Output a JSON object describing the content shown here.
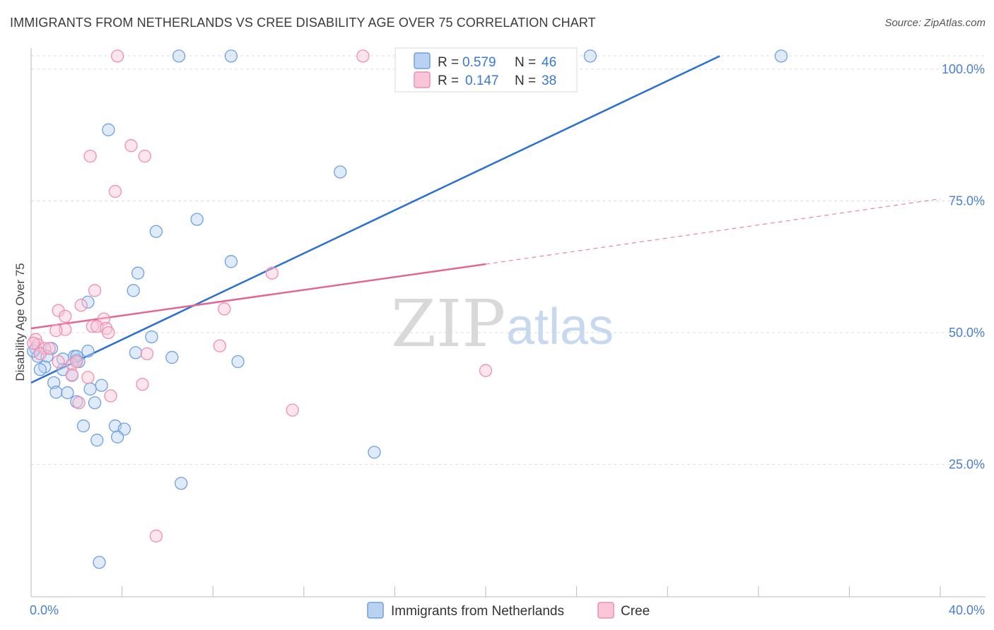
{
  "header": {
    "title": "IMMIGRANTS FROM NETHERLANDS VS CREE DISABILITY AGE OVER 75 CORRELATION CHART",
    "source": "Source: ZipAtlas.com"
  },
  "watermark": {
    "zip": "ZIP",
    "atlas": "atlas"
  },
  "colors": {
    "blue": "#6fa0e0",
    "blue_fill": "#b9d2f2",
    "blue_line": "#2b6fcf",
    "pink": "#ee8fb0",
    "pink_fill": "#f8c6d6",
    "pink_line": "#e06891",
    "grid": "#dddddd",
    "tick_text": "#4a7fcf"
  },
  "legend": {
    "rows": [
      {
        "r_label": "R =",
        "r_value": "0.579",
        "n_label": "N =",
        "n_value": "46"
      },
      {
        "r_label": "R =",
        "r_value": "0.147",
        "n_label": "N =",
        "n_value": "38"
      }
    ]
  },
  "bottom_legend": {
    "items": [
      {
        "label": "Immigrants from Netherlands"
      },
      {
        "label": "Cree"
      }
    ]
  },
  "chart_data": {
    "type": "scatter",
    "title": "IMMIGRANTS FROM NETHERLANDS VS CREE DISABILITY AGE OVER 75 CORRELATION CHART",
    "xlabel": "",
    "ylabel": "Disability Age Over 75",
    "xlim": [
      0,
      40
    ],
    "ylim": [
      0,
      100
    ],
    "x_tick_labels": [
      {
        "value": 0,
        "label": "0.0%"
      },
      {
        "value": 40,
        "label": "40.0%"
      }
    ],
    "y_tick_labels": [
      {
        "value": 100,
        "label": "100.0%"
      },
      {
        "value": 75,
        "label": "75.0%"
      },
      {
        "value": 50,
        "label": "50.0%"
      },
      {
        "value": 25,
        "label": "25.0%"
      }
    ],
    "grid": true,
    "series": [
      {
        "name": "Immigrants from Netherlands",
        "r": 0.579,
        "n": 46,
        "trend": {
          "x": [
            0,
            30.3
          ],
          "y": [
            40.5,
            102.5
          ]
        },
        "points": [
          [
            6.5,
            102.5
          ],
          [
            8.8,
            102.5
          ],
          [
            24.6,
            102.5
          ],
          [
            33.0,
            102.5
          ],
          [
            3.4,
            88.5
          ],
          [
            13.6,
            80.5
          ],
          [
            7.3,
            71.5
          ],
          [
            5.5,
            69.2
          ],
          [
            8.8,
            63.5
          ],
          [
            4.7,
            61.3
          ],
          [
            4.5,
            58.0
          ],
          [
            2.5,
            55.8
          ],
          [
            5.3,
            49.2
          ],
          [
            0.2,
            47.0
          ],
          [
            0.9,
            47.0
          ],
          [
            2.5,
            46.5
          ],
          [
            4.6,
            46.2
          ],
          [
            0.3,
            45.5
          ],
          [
            0.7,
            45.5
          ],
          [
            1.4,
            45.0
          ],
          [
            1.9,
            45.5
          ],
          [
            6.2,
            45.3
          ],
          [
            2.0,
            44.8
          ],
          [
            2.1,
            44.5
          ],
          [
            9.1,
            44.5
          ],
          [
            0.6,
            43.5
          ],
          [
            1.4,
            43.0
          ],
          [
            0.4,
            43.0
          ],
          [
            1.8,
            41.9
          ],
          [
            1.0,
            40.5
          ],
          [
            3.1,
            40.0
          ],
          [
            2.6,
            39.3
          ],
          [
            1.1,
            38.7
          ],
          [
            1.6,
            38.6
          ],
          [
            2.0,
            36.9
          ],
          [
            2.8,
            36.7
          ],
          [
            2.3,
            32.3
          ],
          [
            3.7,
            32.3
          ],
          [
            4.1,
            31.7
          ],
          [
            2.9,
            29.6
          ],
          [
            3.8,
            30.2
          ],
          [
            15.1,
            27.3
          ],
          [
            6.6,
            21.4
          ],
          [
            3.0,
            6.4
          ],
          [
            0.1,
            46.5
          ],
          [
            2.0,
            45.5
          ]
        ]
      },
      {
        "name": "Cree",
        "r": 0.147,
        "n": 38,
        "trend": {
          "x": [
            0,
            20
          ],
          "y": [
            50.8,
            63.0
          ]
        },
        "trend_dashed": {
          "x": [
            20,
            40
          ],
          "y": [
            63.0,
            75.4
          ]
        },
        "points": [
          [
            3.8,
            102.5
          ],
          [
            14.6,
            102.5
          ],
          [
            4.4,
            85.5
          ],
          [
            2.6,
            83.5
          ],
          [
            5.0,
            83.5
          ],
          [
            3.7,
            76.8
          ],
          [
            10.6,
            61.3
          ],
          [
            2.8,
            58.0
          ],
          [
            2.2,
            55.2
          ],
          [
            8.5,
            54.5
          ],
          [
            1.2,
            54.2
          ],
          [
            1.5,
            53.1
          ],
          [
            3.2,
            52.6
          ],
          [
            2.7,
            51.2
          ],
          [
            2.9,
            51.2
          ],
          [
            3.3,
            50.8
          ],
          [
            1.5,
            50.6
          ],
          [
            1.1,
            50.4
          ],
          [
            3.4,
            50.0
          ],
          [
            0.2,
            48.7
          ],
          [
            8.3,
            47.5
          ],
          [
            0.3,
            47.7
          ],
          [
            0.6,
            47.0
          ],
          [
            0.4,
            46.0
          ],
          [
            5.1,
            46.0
          ],
          [
            1.2,
            44.5
          ],
          [
            1.8,
            44.0
          ],
          [
            1.8,
            42.0
          ],
          [
            2.5,
            41.5
          ],
          [
            20.0,
            42.8
          ],
          [
            4.9,
            40.2
          ],
          [
            3.5,
            38.0
          ],
          [
            2.1,
            36.7
          ],
          [
            11.5,
            35.3
          ],
          [
            5.5,
            11.4
          ],
          [
            0.8,
            47.0
          ],
          [
            0.1,
            48.0
          ],
          [
            2.0,
            44.5
          ]
        ]
      }
    ]
  }
}
